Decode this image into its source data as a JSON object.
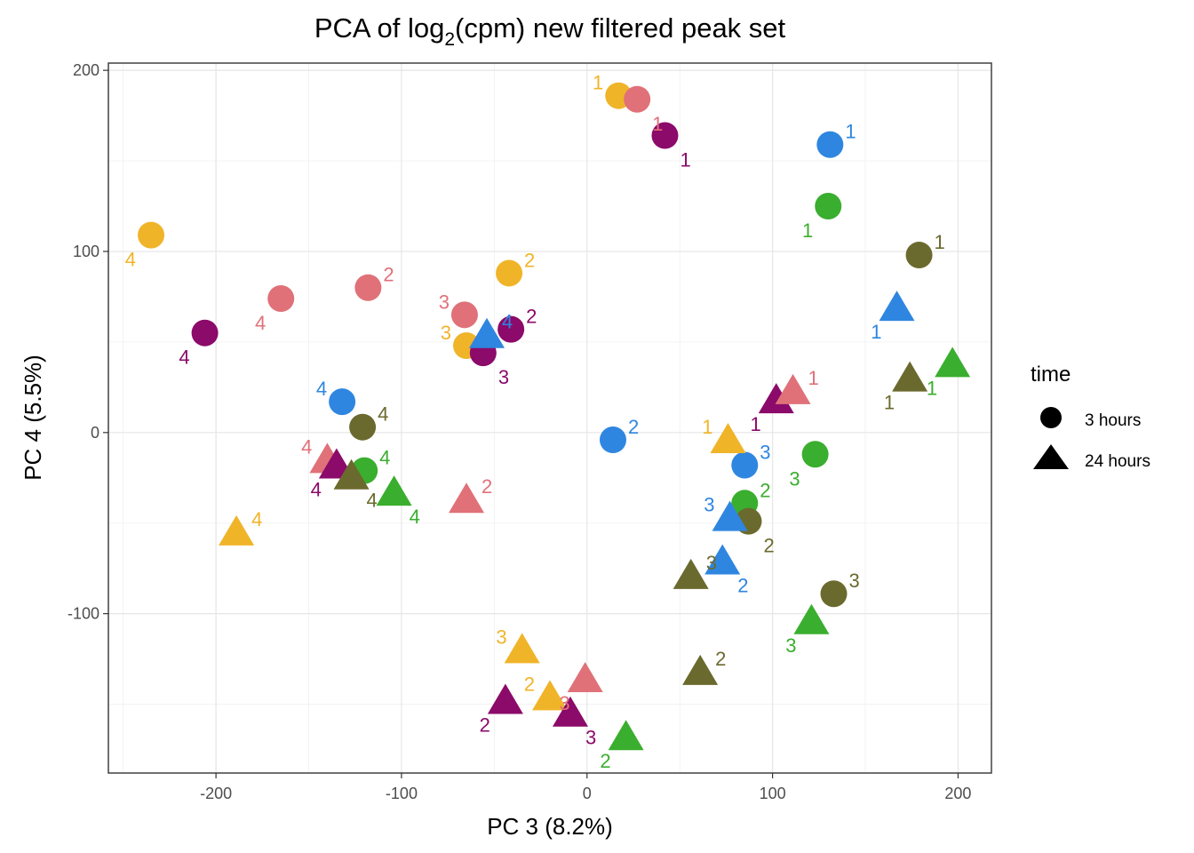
{
  "chart_data": {
    "type": "scatter",
    "title_main": "PCA of log",
    "title_sub": "2",
    "title_rest": "(cpm) new filtered peak set",
    "xlabel": "PC 3 (8.2%)",
    "ylabel": "PC 4 (5.5%)",
    "xlim": [
      -258,
      218
    ],
    "ylim": [
      -188,
      204
    ],
    "x_ticks": [
      -200,
      -100,
      0,
      100,
      200
    ],
    "y_ticks": [
      -100,
      0,
      100,
      200
    ],
    "x_tick_labels": [
      "-200",
      "-100",
      "0",
      "100",
      "200"
    ],
    "y_tick_labels": [
      "-100",
      "0",
      "100",
      "200"
    ],
    "grid": true,
    "legend": {
      "title": "time",
      "placement": "right",
      "entries": [
        {
          "label": "3 hours",
          "shape": "circle"
        },
        {
          "label": "24 hours",
          "shape": "triangle"
        }
      ]
    },
    "colors": {
      "yellow": "#F0B429",
      "pink": "#E07179",
      "purple": "#8B0A6A",
      "blue": "#2F86E0",
      "green": "#3AAE2E",
      "olive": "#6B6A2E"
    },
    "points": [
      {
        "x": 17,
        "y": 186,
        "label": "1",
        "color": "yellow",
        "shape": "circle",
        "lp": "tl"
      },
      {
        "x": 27,
        "y": 184,
        "label": "1",
        "color": "pink",
        "shape": "circle",
        "lp": "br"
      },
      {
        "x": 42,
        "y": 164,
        "label": "1",
        "color": "purple",
        "shape": "circle",
        "lp": "br"
      },
      {
        "x": 131,
        "y": 159,
        "label": "1",
        "color": "blue",
        "shape": "circle",
        "lp": "tr"
      },
      {
        "x": 130,
        "y": 125,
        "label": "1",
        "color": "green",
        "shape": "circle",
        "lp": "bl"
      },
      {
        "x": 179,
        "y": 98,
        "label": "1",
        "color": "olive",
        "shape": "circle",
        "lp": "tr"
      },
      {
        "x": -235,
        "y": 109,
        "label": "4",
        "color": "yellow",
        "shape": "circle",
        "lp": "bl"
      },
      {
        "x": -165,
        "y": 74,
        "label": "4",
        "color": "pink",
        "shape": "circle",
        "lp": "bl"
      },
      {
        "x": -206,
        "y": 55,
        "label": "4",
        "color": "purple",
        "shape": "circle",
        "lp": "bl"
      },
      {
        "x": -118,
        "y": 80,
        "label": "2",
        "color": "pink",
        "shape": "circle",
        "lp": "tr"
      },
      {
        "x": -42,
        "y": 88,
        "label": "2",
        "color": "yellow",
        "shape": "circle",
        "lp": "tr"
      },
      {
        "x": -66,
        "y": 65,
        "label": "3",
        "color": "pink",
        "shape": "circle",
        "lp": "tl"
      },
      {
        "x": -65,
        "y": 48,
        "label": "3",
        "color": "yellow",
        "shape": "circle",
        "lp": "tl"
      },
      {
        "x": -41,
        "y": 57,
        "label": "2",
        "color": "purple",
        "shape": "circle",
        "lp": "tr"
      },
      {
        "x": -56,
        "y": 44,
        "label": "3",
        "color": "purple",
        "shape": "circle",
        "lp": "br"
      },
      {
        "x": -132,
        "y": 17,
        "label": "4",
        "color": "blue",
        "shape": "circle",
        "lp": "tl"
      },
      {
        "x": -121,
        "y": 3,
        "label": "4",
        "color": "olive",
        "shape": "circle",
        "lp": "tr"
      },
      {
        "x": -120,
        "y": -21,
        "label": "4",
        "color": "green",
        "shape": "circle",
        "lp": "tr"
      },
      {
        "x": 14,
        "y": -4,
        "label": "2",
        "color": "blue",
        "shape": "circle",
        "lp": "tr"
      },
      {
        "x": 85,
        "y": -18,
        "label": "3",
        "color": "blue",
        "shape": "circle",
        "lp": "tr"
      },
      {
        "x": 123,
        "y": -12,
        "label": "3",
        "color": "green",
        "shape": "circle",
        "lp": "bl"
      },
      {
        "x": 85,
        "y": -39,
        "label": "2",
        "color": "green",
        "shape": "circle",
        "lp": "tr"
      },
      {
        "x": 87,
        "y": -49,
        "label": "2",
        "color": "olive",
        "shape": "circle",
        "lp": "br"
      },
      {
        "x": 133,
        "y": -89,
        "label": "3",
        "color": "olive",
        "shape": "circle",
        "lp": "tr"
      },
      {
        "x": -54,
        "y": 54,
        "label": "4",
        "color": "blue",
        "shape": "triangle",
        "lp": "tr"
      },
      {
        "x": 167,
        "y": 69,
        "label": "1",
        "color": "blue",
        "shape": "triangle",
        "lp": "bl"
      },
      {
        "x": 197,
        "y": 38,
        "label": "1",
        "color": "green",
        "shape": "triangle",
        "lp": "bl"
      },
      {
        "x": 174,
        "y": 30,
        "label": "1",
        "color": "olive",
        "shape": "triangle",
        "lp": "bl"
      },
      {
        "x": 102,
        "y": 18,
        "label": "1",
        "color": "purple",
        "shape": "triangle",
        "lp": "bl"
      },
      {
        "x": 111,
        "y": 23,
        "label": "1",
        "color": "pink",
        "shape": "triangle",
        "lp": "tr"
      },
      {
        "x": 76,
        "y": -4,
        "label": "1",
        "color": "yellow",
        "shape": "triangle",
        "lp": "tl"
      },
      {
        "x": -140,
        "y": -15,
        "label": "4",
        "color": "pink",
        "shape": "triangle",
        "lp": "tl"
      },
      {
        "x": -135,
        "y": -18,
        "label": "4",
        "color": "purple",
        "shape": "triangle",
        "lp": "bl"
      },
      {
        "x": -127,
        "y": -24,
        "label": "4",
        "color": "olive",
        "shape": "triangle",
        "lp": "br"
      },
      {
        "x": -104,
        "y": -33,
        "label": "4",
        "color": "green",
        "shape": "triangle",
        "lp": "br"
      },
      {
        "x": -189,
        "y": -55,
        "label": "4",
        "color": "yellow",
        "shape": "triangle",
        "lp": "tr"
      },
      {
        "x": -65,
        "y": -37,
        "label": "2",
        "color": "pink",
        "shape": "triangle",
        "lp": "tr"
      },
      {
        "x": 77,
        "y": -47,
        "label": "3",
        "color": "blue",
        "shape": "triangle",
        "lp": "tl"
      },
      {
        "x": 73,
        "y": -71,
        "label": "2",
        "color": "blue",
        "shape": "triangle",
        "lp": "br"
      },
      {
        "x": 56,
        "y": -79,
        "label": "3",
        "color": "olive",
        "shape": "triangle",
        "lp": "tr"
      },
      {
        "x": 121,
        "y": -104,
        "label": "3",
        "color": "green",
        "shape": "triangle",
        "lp": "bl"
      },
      {
        "x": 61,
        "y": -132,
        "label": "2",
        "color": "olive",
        "shape": "triangle",
        "lp": "tr"
      },
      {
        "x": -35,
        "y": -120,
        "label": "3",
        "color": "yellow",
        "shape": "triangle",
        "lp": "tl"
      },
      {
        "x": -20,
        "y": -146,
        "label": "2",
        "color": "yellow",
        "shape": "triangle",
        "lp": "tl"
      },
      {
        "x": -1,
        "y": -136,
        "label": "3",
        "color": "pink",
        "shape": "triangle",
        "lp": "bl"
      },
      {
        "x": -44,
        "y": -148,
        "label": "2",
        "color": "purple",
        "shape": "triangle",
        "lp": "bl"
      },
      {
        "x": -9,
        "y": -155,
        "label": "3",
        "color": "purple",
        "shape": "triangle",
        "lp": "br"
      },
      {
        "x": 21,
        "y": -168,
        "label": "2",
        "color": "green",
        "shape": "triangle",
        "lp": "bl"
      }
    ]
  }
}
